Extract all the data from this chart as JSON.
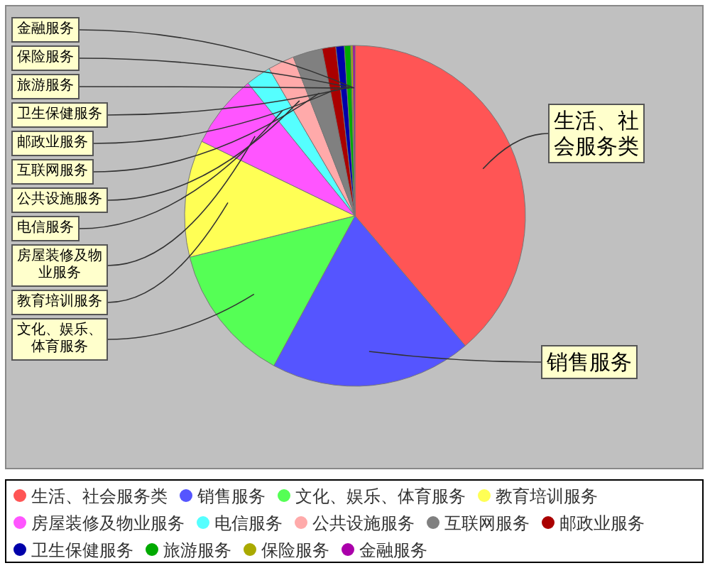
{
  "chart_data": {
    "type": "pie",
    "legend": "bottom",
    "categories": [
      "生活、社会服务类",
      "销售服务",
      "文化、娱乐、体育服务",
      "教育培训服务",
      "房屋装修及物业服务",
      "电信服务",
      "公共设施服务",
      "互联网服务",
      "邮政业服务",
      "卫生保健服务",
      "旅游服务",
      "保险服务",
      "金融服务"
    ],
    "values": [
      38.8,
      19.1,
      13.2,
      11.1,
      7.0,
      2.4,
      2.5,
      2.8,
      1.3,
      0.8,
      0.6,
      0.2,
      0.2
    ],
    "colors": [
      "#ff5555",
      "#5555ff",
      "#55ff55",
      "#ffff55",
      "#ff55ff",
      "#55ffff",
      "#ffaaaa",
      "#808080",
      "#aa0000",
      "#0000aa",
      "#00aa00",
      "#aaaa00",
      "#aa00aa"
    ]
  }
}
